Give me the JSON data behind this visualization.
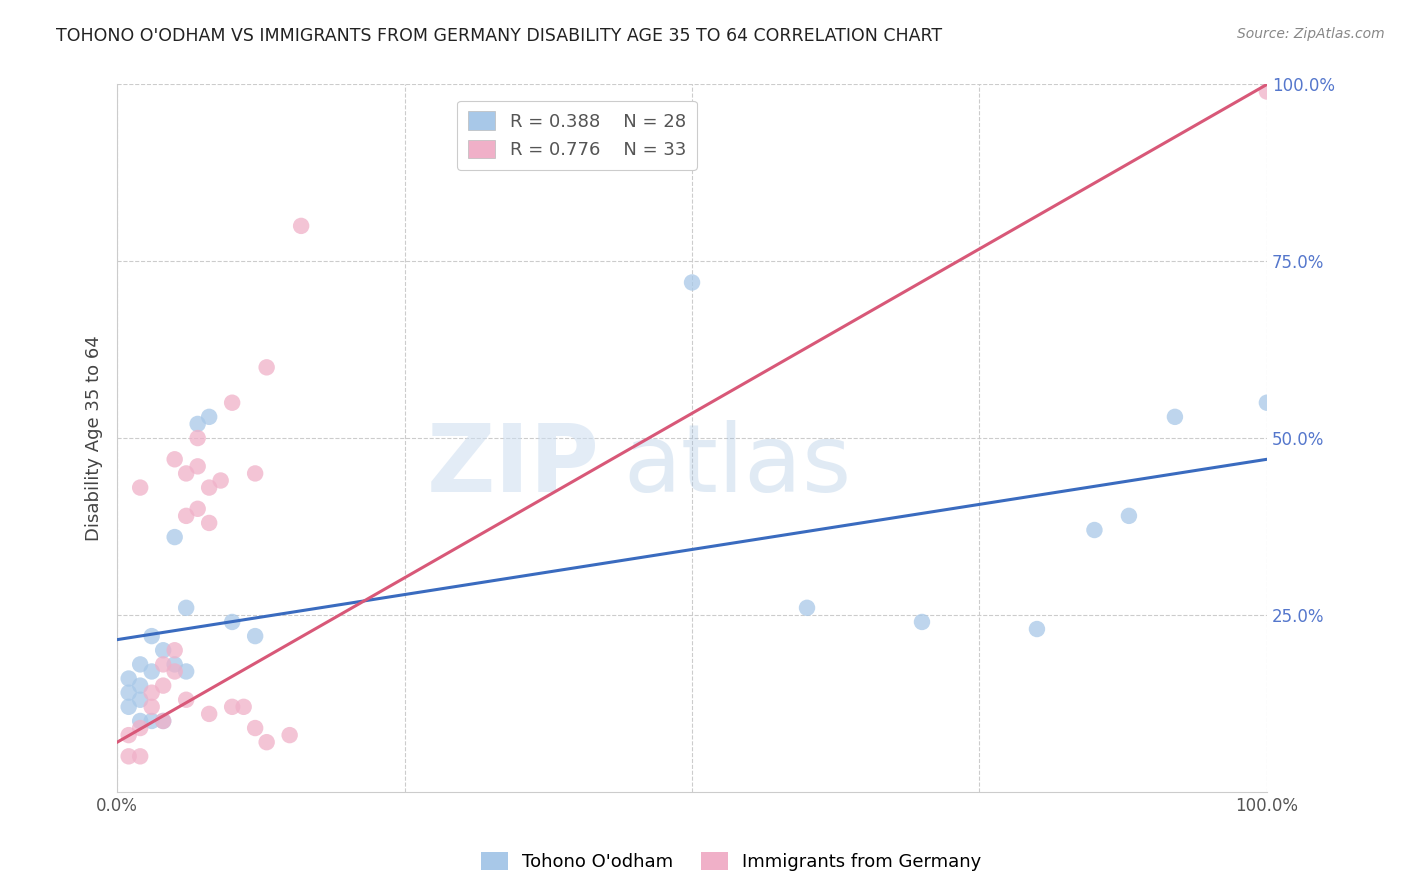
{
  "title": "TOHONO O'ODHAM VS IMMIGRANTS FROM GERMANY DISABILITY AGE 35 TO 64 CORRELATION CHART",
  "source": "Source: ZipAtlas.com",
  "ylabel": "Disability Age 35 to 64",
  "xlim": [
    0,
    1.0
  ],
  "ylim": [
    0,
    1.0
  ],
  "xticks": [
    0.0,
    0.25,
    0.5,
    0.75,
    1.0
  ],
  "xticklabels": [
    "0.0%",
    "",
    "",
    "",
    "100.0%"
  ],
  "yticks": [
    0.0,
    0.25,
    0.5,
    0.75,
    1.0
  ],
  "yticklabels": [
    "",
    "25.0%",
    "50.0%",
    "75.0%",
    "100.0%"
  ],
  "blue_R": 0.388,
  "blue_N": 28,
  "pink_R": 0.776,
  "pink_N": 33,
  "blue_color": "#a8c8e8",
  "pink_color": "#f0b0c8",
  "blue_line_color": "#3a6bbf",
  "pink_line_color": "#d85878",
  "blue_scatter": [
    [
      0.02,
      0.18
    ],
    [
      0.03,
      0.22
    ],
    [
      0.02,
      0.15
    ],
    [
      0.01,
      0.16
    ],
    [
      0.01,
      0.14
    ],
    [
      0.02,
      0.13
    ],
    [
      0.03,
      0.17
    ],
    [
      0.04,
      0.2
    ],
    [
      0.05,
      0.18
    ],
    [
      0.06,
      0.17
    ],
    [
      0.05,
      0.36
    ],
    [
      0.06,
      0.26
    ],
    [
      0.07,
      0.52
    ],
    [
      0.08,
      0.53
    ],
    [
      0.1,
      0.24
    ],
    [
      0.12,
      0.22
    ],
    [
      0.01,
      0.12
    ],
    [
      0.02,
      0.1
    ],
    [
      0.03,
      0.1
    ],
    [
      0.04,
      0.1
    ],
    [
      0.5,
      0.72
    ],
    [
      0.6,
      0.26
    ],
    [
      0.7,
      0.24
    ],
    [
      0.8,
      0.23
    ],
    [
      0.85,
      0.37
    ],
    [
      0.88,
      0.39
    ],
    [
      0.92,
      0.53
    ],
    [
      1.0,
      0.55
    ]
  ],
  "pink_scatter": [
    [
      0.01,
      0.05
    ],
    [
      0.02,
      0.05
    ],
    [
      0.01,
      0.08
    ],
    [
      0.02,
      0.09
    ],
    [
      0.03,
      0.12
    ],
    [
      0.03,
      0.14
    ],
    [
      0.04,
      0.15
    ],
    [
      0.04,
      0.18
    ],
    [
      0.05,
      0.17
    ],
    [
      0.05,
      0.2
    ],
    [
      0.05,
      0.47
    ],
    [
      0.06,
      0.45
    ],
    [
      0.07,
      0.46
    ],
    [
      0.07,
      0.5
    ],
    [
      0.06,
      0.39
    ],
    [
      0.07,
      0.4
    ],
    [
      0.08,
      0.43
    ],
    [
      0.08,
      0.38
    ],
    [
      0.09,
      0.44
    ],
    [
      0.1,
      0.55
    ],
    [
      0.1,
      0.12
    ],
    [
      0.11,
      0.12
    ],
    [
      0.12,
      0.45
    ],
    [
      0.13,
      0.6
    ],
    [
      0.16,
      0.8
    ],
    [
      0.02,
      0.43
    ],
    [
      0.06,
      0.13
    ],
    [
      0.04,
      0.1
    ],
    [
      0.08,
      0.11
    ],
    [
      0.12,
      0.09
    ],
    [
      0.13,
      0.07
    ],
    [
      0.15,
      0.08
    ],
    [
      1.0,
      0.99
    ]
  ],
  "blue_line_x": [
    0.0,
    1.0
  ],
  "blue_line_y": [
    0.215,
    0.47
  ],
  "pink_line_x": [
    0.0,
    1.0
  ],
  "pink_line_y": [
    0.07,
    1.0
  ],
  "background_color": "#ffffff",
  "grid_color": "#cccccc",
  "ytick_color": "#5577cc",
  "xtick_color": "#555555"
}
